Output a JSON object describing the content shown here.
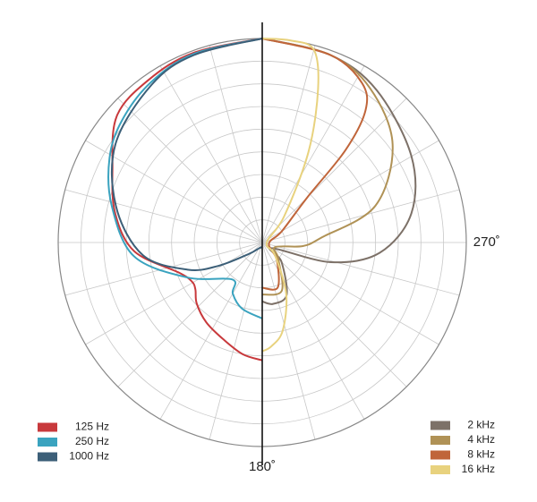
{
  "chart_data": {
    "type": "polar",
    "rlim": [
      0,
      9
    ],
    "rticks": [
      1,
      2,
      3,
      4,
      5,
      6,
      7,
      8,
      9
    ],
    "thetaticks": [
      0,
      15,
      30,
      45,
      60,
      75,
      90,
      105,
      120,
      135,
      150,
      165,
      {
        "value": 180,
        "label": "180˚"
      },
      195,
      210,
      225,
      240,
      255,
      {
        "value": 270,
        "label": "270˚"
      },
      285,
      300,
      315,
      330,
      345
    ],
    "grid": true,
    "series": [
      {
        "name": "125 Hz",
        "color": "#c8393c",
        "legend": "lower left",
        "theta": [
          0,
          20,
          35,
          49,
          64,
          79,
          94,
          110,
          119,
          125,
          133,
          145,
          158,
          170,
          180
        ],
        "values": [
          9,
          8.9,
          8.75,
          8.5,
          7.35,
          6.6,
          5.65,
          3.9,
          3.55,
          3.6,
          3.95,
          4.3,
          4.6,
          5.0,
          5.2
        ]
      },
      {
        "name": "250 Hz",
        "color": "#3aa3bf",
        "legend": "lower left",
        "theta": [
          0,
          20,
          35,
          49,
          61,
          76,
          96,
          115,
          141,
          150,
          163,
          180
        ],
        "values": [
          9,
          8.85,
          8.6,
          8.2,
          7.7,
          6.85,
          5.7,
          3.65,
          2.1,
          2.6,
          3.05,
          3.35
        ]
      },
      {
        "name": "1000 Hz",
        "color": "#3c5f78",
        "legend": "lower left",
        "theta": [
          0,
          20,
          35,
          56,
          76,
          96,
          110,
          118,
          130,
          150,
          180
        ],
        "values": [
          9,
          8.8,
          8.5,
          7.8,
          6.65,
          5.3,
          3.5,
          2.2,
          0.8,
          0.3,
          0.2
        ]
      },
      {
        "name": "2 kHz",
        "color": "#7d7168",
        "legend": "lower right",
        "theta": [
          180,
          190,
          205,
          225,
          240,
          254,
          265,
          281,
          300,
          323,
          340,
          360
        ],
        "values": [
          2.6,
          2.75,
          2.55,
          1.2,
          0.5,
          3.15,
          5.2,
          6.7,
          7.6,
          8.4,
          8.8,
          9
        ]
      },
      {
        "name": "4 kHz",
        "color": "#b09256",
        "legend": "lower right",
        "theta": [
          180,
          202,
          225,
          250,
          265,
          275,
          288,
          307,
          325,
          340,
          360
        ],
        "values": [
          2.3,
          2.3,
          1.0,
          0.6,
          1.8,
          2.65,
          5.25,
          7.2,
          8.3,
          8.8,
          9
        ]
      },
      {
        "name": "8 kHz",
        "color": "#c0653a",
        "legend": "lower right",
        "theta": [
          180,
          199,
          220,
          260,
          300,
          315,
          318,
          322,
          328,
          340,
          360
        ],
        "values": [
          2.0,
          2.1,
          1.0,
          0.3,
          1.0,
          2.8,
          5.5,
          7.4,
          8.3,
          8.8,
          9
        ]
      },
      {
        "name": "16 kHz",
        "color": "#e8d27e",
        "legend": "lower right",
        "theta": [
          180,
          185,
          193,
          205,
          225,
          270,
          320,
          333,
          340,
          345,
          352,
          360
        ],
        "values": [
          4.8,
          4.6,
          4.0,
          2.5,
          0.8,
          0.2,
          1.5,
          4.5,
          7.2,
          8.8,
          9,
          9
        ]
      }
    ]
  }
}
